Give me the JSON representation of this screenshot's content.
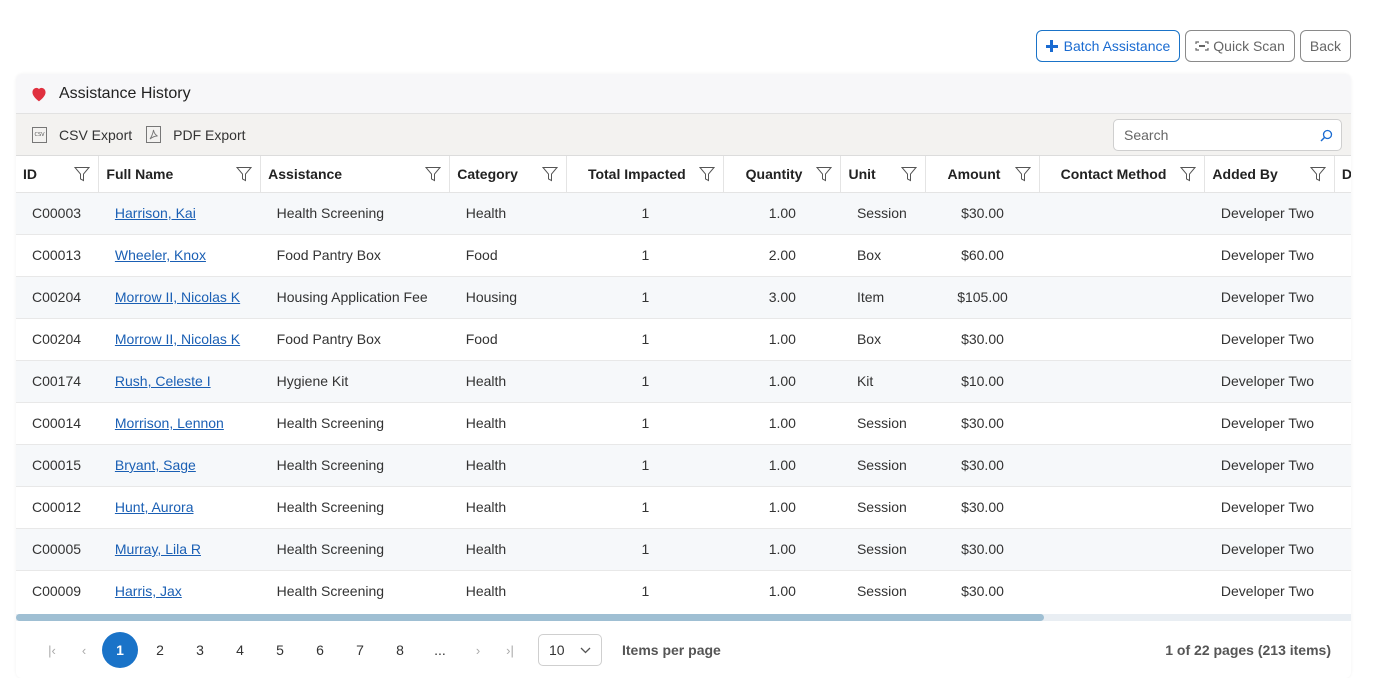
{
  "actions": {
    "batch_label": "Batch Assistance",
    "scan_label": "Quick Scan",
    "back_label": "Back"
  },
  "card": {
    "title": "Assistance History",
    "heart_color": "#e0303f"
  },
  "toolbar": {
    "csv_label": "CSV Export",
    "pdf_label": "PDF Export",
    "search_placeholder": "Search"
  },
  "columns": [
    "ID",
    "Full Name",
    "Assistance",
    "Category",
    "Total Impacted",
    "Quantity",
    "Unit",
    "Amount",
    "Contact Method",
    "Added By",
    "Dep"
  ],
  "rows": [
    {
      "id": "C00003",
      "name": "Harrison, Kai",
      "assistance": "Health Screening",
      "category": "Health",
      "impacted": "1",
      "quantity": "1.00",
      "unit": "Session",
      "amount": "$30.00",
      "contact": "",
      "added_by": "Developer Two"
    },
    {
      "id": "C00013",
      "name": "Wheeler, Knox",
      "assistance": "Food Pantry Box",
      "category": "Food",
      "impacted": "1",
      "quantity": "2.00",
      "unit": "Box",
      "amount": "$60.00",
      "contact": "",
      "added_by": "Developer Two"
    },
    {
      "id": "C00204",
      "name": "Morrow II, Nicolas K",
      "assistance": "Housing Application Fee",
      "category": "Housing",
      "impacted": "1",
      "quantity": "3.00",
      "unit": "Item",
      "amount": "$105.00",
      "contact": "",
      "added_by": "Developer Two"
    },
    {
      "id": "C00204",
      "name": "Morrow II, Nicolas K",
      "assistance": "Food Pantry Box",
      "category": "Food",
      "impacted": "1",
      "quantity": "1.00",
      "unit": "Box",
      "amount": "$30.00",
      "contact": "",
      "added_by": "Developer Two"
    },
    {
      "id": "C00174",
      "name": "Rush, Celeste I",
      "assistance": "Hygiene Kit",
      "category": "Health",
      "impacted": "1",
      "quantity": "1.00",
      "unit": "Kit",
      "amount": "$10.00",
      "contact": "",
      "added_by": "Developer Two"
    },
    {
      "id": "C00014",
      "name": "Morrison, Lennon",
      "assistance": "Health Screening",
      "category": "Health",
      "impacted": "1",
      "quantity": "1.00",
      "unit": "Session",
      "amount": "$30.00",
      "contact": "",
      "added_by": "Developer Two"
    },
    {
      "id": "C00015",
      "name": "Bryant, Sage",
      "assistance": "Health Screening",
      "category": "Health",
      "impacted": "1",
      "quantity": "1.00",
      "unit": "Session",
      "amount": "$30.00",
      "contact": "",
      "added_by": "Developer Two"
    },
    {
      "id": "C00012",
      "name": "Hunt, Aurora",
      "assistance": "Health Screening",
      "category": "Health",
      "impacted": "1",
      "quantity": "1.00",
      "unit": "Session",
      "amount": "$30.00",
      "contact": "",
      "added_by": "Developer Two"
    },
    {
      "id": "C00005",
      "name": "Murray, Lila R",
      "assistance": "Health Screening",
      "category": "Health",
      "impacted": "1",
      "quantity": "1.00",
      "unit": "Session",
      "amount": "$30.00",
      "contact": "",
      "added_by": "Developer Two"
    },
    {
      "id": "C00009",
      "name": "Harris, Jax",
      "assistance": "Health Screening",
      "category": "Health",
      "impacted": "1",
      "quantity": "1.00",
      "unit": "Session",
      "amount": "$30.00",
      "contact": "",
      "added_by": "Developer Two"
    }
  ],
  "pager": {
    "pages": [
      "1",
      "2",
      "3",
      "4",
      "5",
      "6",
      "7",
      "8",
      "..."
    ],
    "current_page": "1",
    "page_size": "10",
    "items_per_page_label": "Items per page",
    "info": "1 of 22 pages (213 items)",
    "scroll_position": 0.77
  }
}
